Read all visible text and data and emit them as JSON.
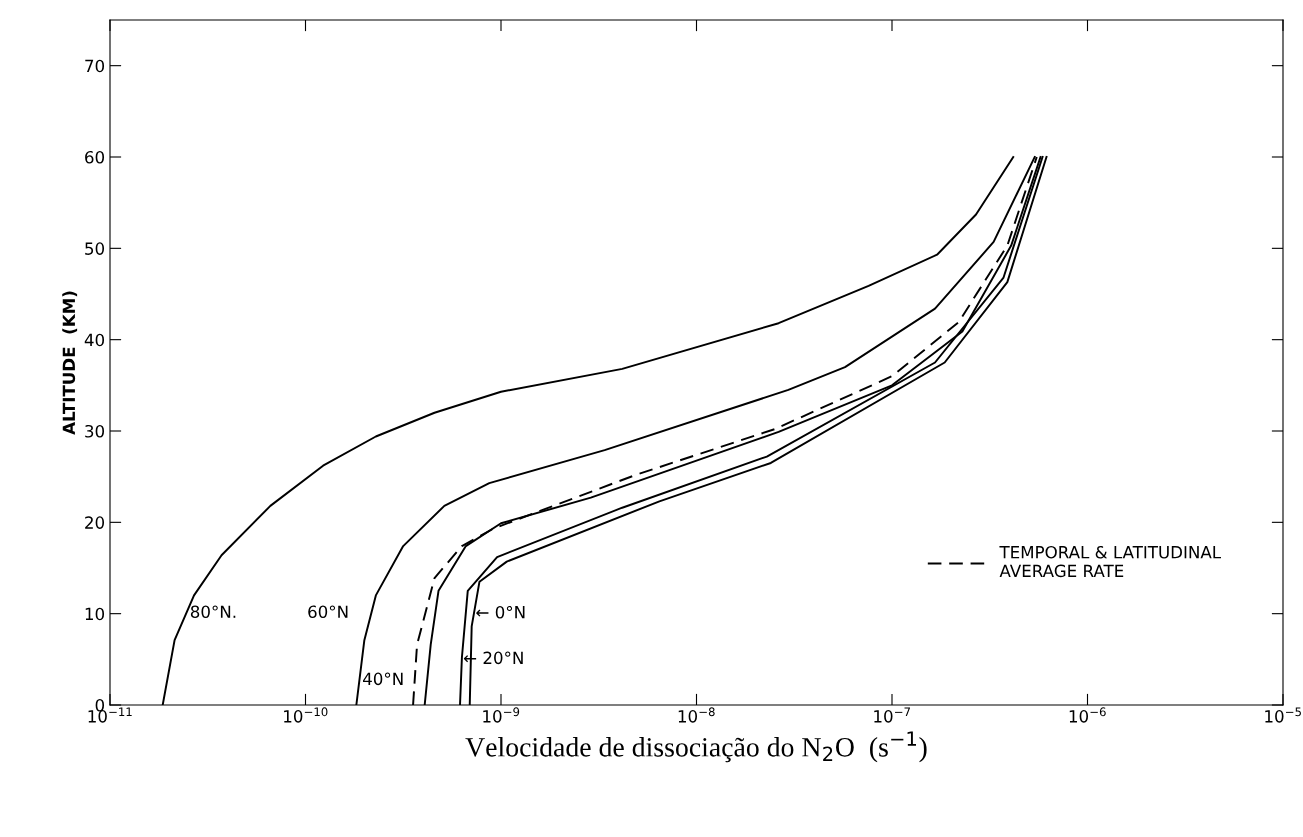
{
  "chart_data": {
    "type": "line",
    "xlabel": "Velocidade de dissociação do N$_{2}$O  (s$^{−1}$)",
    "ylabel": "ALTITUDE  (KM)",
    "log": "x",
    "xlim": [
      1e-11,
      1e-05
    ],
    "ylim": [
      0,
      75
    ],
    "xticks": [
      {
        "value": 1e-11,
        "label": "10$^{−11}$"
      },
      {
        "value": 1e-10,
        "label": "10$^{−10}$"
      },
      {
        "value": 1e-09,
        "label": "10$^{−9}$"
      },
      {
        "value": 1e-08,
        "label": "10$^{−8}$"
      },
      {
        "value": 1e-07,
        "label": "10$^{−7}$"
      },
      {
        "value": 1e-06,
        "label": "10$^{−6}$"
      },
      {
        "value": 1e-05,
        "label": "10$^{−5}$"
      }
    ],
    "yticks": [
      0,
      10,
      20,
      30,
      40,
      50,
      60,
      70
    ],
    "grid": false,
    "legend": "bottom right",
    "marker": "none",
    "series": [
      {
        "color": "#000000",
        "line_style": "solid",
        "x": [
          1.86e-11,
          2.14e-11,
          2.69e-11,
          3.72e-11,
          6.61e-11,
          1.23e-10,
          2.29e-10,
          4.57e-10,
          1e-09,
          4.17e-09,
          2.63e-08,
          7.59e-08,
          1.7e-07,
          2.69e-07,
          4.17e-07
        ],
        "values": [
          0,
          7.1,
          12.0,
          16.4,
          21.8,
          26.2,
          29.4,
          32.0,
          34.3,
          36.8,
          41.8,
          45.9,
          49.3,
          53.7,
          60
        ]
      },
      {
        "color": "#000000",
        "line_style": "solid",
        "x": [
          1.82e-10,
          2e-10,
          2.29e-10,
          3.16e-10,
          5.13e-10,
          8.71e-10,
          3.39e-09,
          2.95e-08,
          5.75e-08,
          1.66e-07,
          3.31e-07,
          5.37e-07
        ],
        "values": [
          0,
          7.1,
          12.0,
          17.4,
          21.8,
          24.3,
          27.9,
          34.5,
          37.0,
          43.4,
          50.7,
          60
        ]
      },
      {
        "name": "TEMPORAL & LATITUDINAL\nAVERAGE RATE",
        "color": "#000000",
        "line_style": "dashed",
        "x": [
          3.55e-10,
          3.72e-10,
          4.57e-10,
          6.31e-10,
          9.12e-10,
          1.7e-09,
          4.9e-09,
          2.51e-08,
          1e-07,
          2.19e-07,
          3.89e-07,
          5.5e-07
        ],
        "values": [
          0,
          6.6,
          13.9,
          17.4,
          19.3,
          21.5,
          25.2,
          30.2,
          36.0,
          41.9,
          50.3,
          60
        ]
      },
      {
        "color": "#000000",
        "line_style": "solid",
        "x": [
          4.07e-10,
          4.37e-10,
          4.79e-10,
          6.61e-10,
          1e-09,
          2.88e-09,
          2.63e-08,
          1e-07,
          2.29e-07,
          4.07e-07,
          5.75e-07
        ],
        "values": [
          0,
          6.6,
          12.5,
          17.4,
          19.9,
          22.7,
          29.9,
          35.0,
          40.9,
          50.3,
          60
        ]
      },
      {
        "color": "#000000",
        "line_style": "solid",
        "x": [
          6.17e-10,
          6.31e-10,
          6.76e-10,
          9.55e-10,
          4.17e-09,
          2.29e-08,
          1.66e-07,
          3.72e-07,
          5.89e-07
        ],
        "values": [
          0,
          5.2,
          12.5,
          16.2,
          21.6,
          27.2,
          37.5,
          46.8,
          60
        ]
      },
      {
        "color": "#000000",
        "line_style": "solid",
        "x": [
          6.92e-10,
          7.08e-10,
          7.76e-10,
          1.07e-09,
          6.46e-09,
          2.4e-08,
          1.86e-07,
          3.89e-07,
          6.17e-07
        ],
        "values": [
          0,
          8.6,
          13.5,
          15.7,
          22.3,
          26.5,
          37.5,
          46.3,
          60
        ]
      }
    ],
    "annotations": [
      "80°N.",
      "60°N",
      "40°N",
      {
        "text": "← 0°N",
        "x": 7.4e-10,
        "y": 10
      },
      {
        "text": "← 20°N",
        "x": 6.4e-10,
        "y": 5
      }
    ]
  }
}
